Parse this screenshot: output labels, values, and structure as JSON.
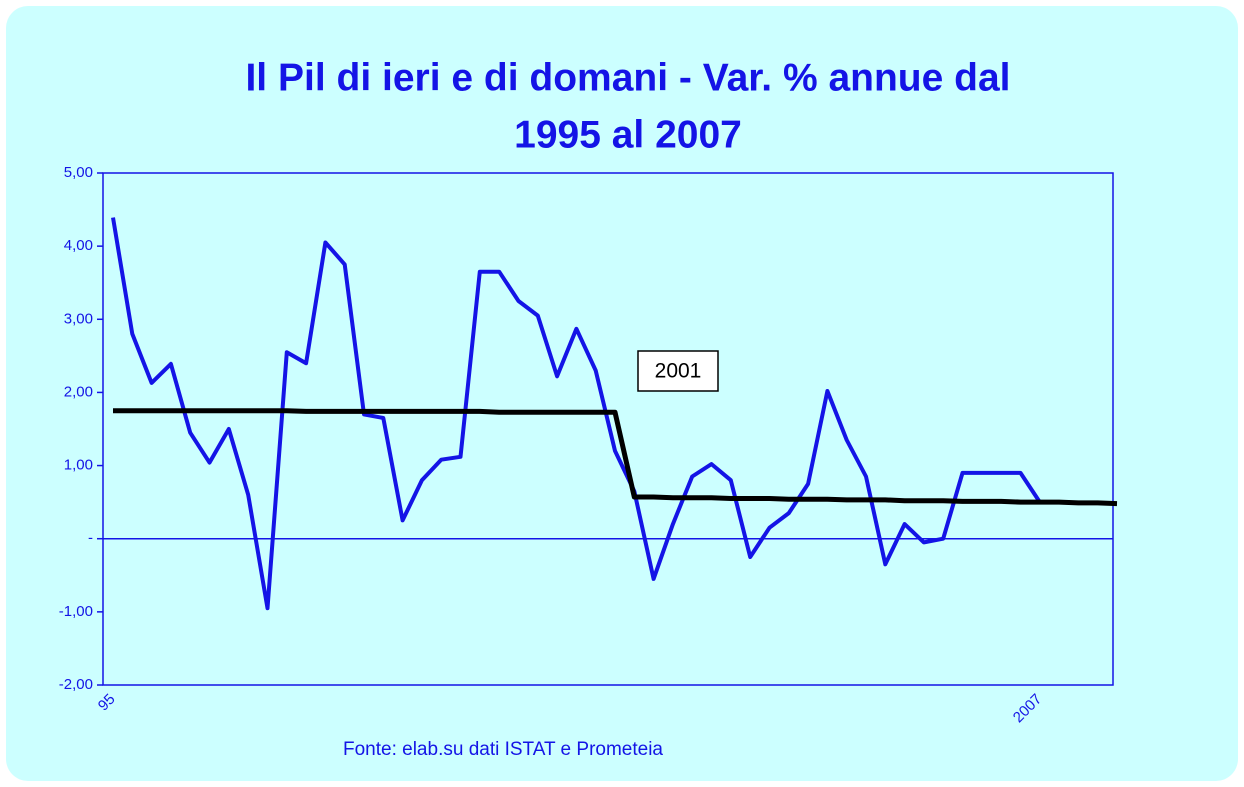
{
  "chart_data": {
    "type": "line",
    "title": "Il Pil di ieri e di domani - Var. % annue dal",
    "title_line2": "1995 al 2007",
    "source": "Fonte: elab.su dati ISTAT e Prometeia",
    "annotation": "2001",
    "categories": [
      "95",
      null,
      null,
      null,
      null,
      null,
      null,
      null,
      null,
      null,
      null,
      null,
      null,
      null,
      null,
      null,
      null,
      null,
      null,
      null,
      null,
      null,
      null,
      null,
      null,
      null,
      null,
      null,
      null,
      null,
      null,
      null,
      null,
      null,
      null,
      null,
      null,
      null,
      null,
      null,
      null,
      null,
      null,
      null,
      null,
      null,
      null,
      null,
      "2007",
      null,
      null,
      null,
      null
    ],
    "series": [
      {
        "color": "#1414e6",
        "width": 4,
        "values": [
          4.39,
          2.8,
          2.13,
          2.39,
          1.45,
          1.04,
          1.5,
          0.6,
          -0.95,
          2.55,
          2.4,
          4.05,
          3.75,
          1.7,
          1.65,
          0.25,
          0.8,
          1.08,
          1.12,
          3.65,
          3.65,
          3.25,
          3.05,
          2.22,
          2.87,
          2.3,
          1.2,
          0.65,
          -0.55,
          0.2,
          0.85,
          1.02,
          0.8,
          -0.25,
          0.15,
          0.35,
          0.75,
          2.02,
          1.35,
          0.85,
          -0.35,
          0.2,
          -0.05,
          0.0,
          0.9,
          0.9,
          0.9,
          0.9,
          0.5,
          null,
          null,
          null,
          null
        ]
      },
      {
        "color": "#000000",
        "width": 5,
        "values": [
          1.75,
          1.75,
          1.75,
          1.75,
          1.75,
          1.75,
          1.75,
          1.75,
          1.75,
          1.75,
          1.74,
          1.74,
          1.74,
          1.74,
          1.74,
          1.74,
          1.74,
          1.74,
          1.74,
          1.74,
          1.73,
          1.73,
          1.73,
          1.73,
          1.73,
          1.73,
          1.73,
          0.57,
          0.57,
          0.56,
          0.56,
          0.56,
          0.55,
          0.55,
          0.55,
          0.54,
          0.54,
          0.54,
          0.53,
          0.53,
          0.53,
          0.52,
          0.52,
          0.52,
          0.51,
          0.51,
          0.51,
          0.5,
          0.5,
          0.5,
          0.49,
          0.49,
          0.48
        ]
      }
    ],
    "ylim": [
      -2,
      5
    ],
    "yticks": [
      {
        "value": 5,
        "label": "5,00"
      },
      {
        "value": 4,
        "label": "4,00"
      },
      {
        "value": 3,
        "label": "3,00"
      },
      {
        "value": 2,
        "label": "2,00"
      },
      {
        "value": 1,
        "label": "1,00"
      },
      {
        "value": 0,
        "label": "-"
      },
      {
        "value": -1,
        "label": "-1,00"
      },
      {
        "value": -2,
        "label": "-2,00"
      }
    ],
    "zero_line": true
  }
}
